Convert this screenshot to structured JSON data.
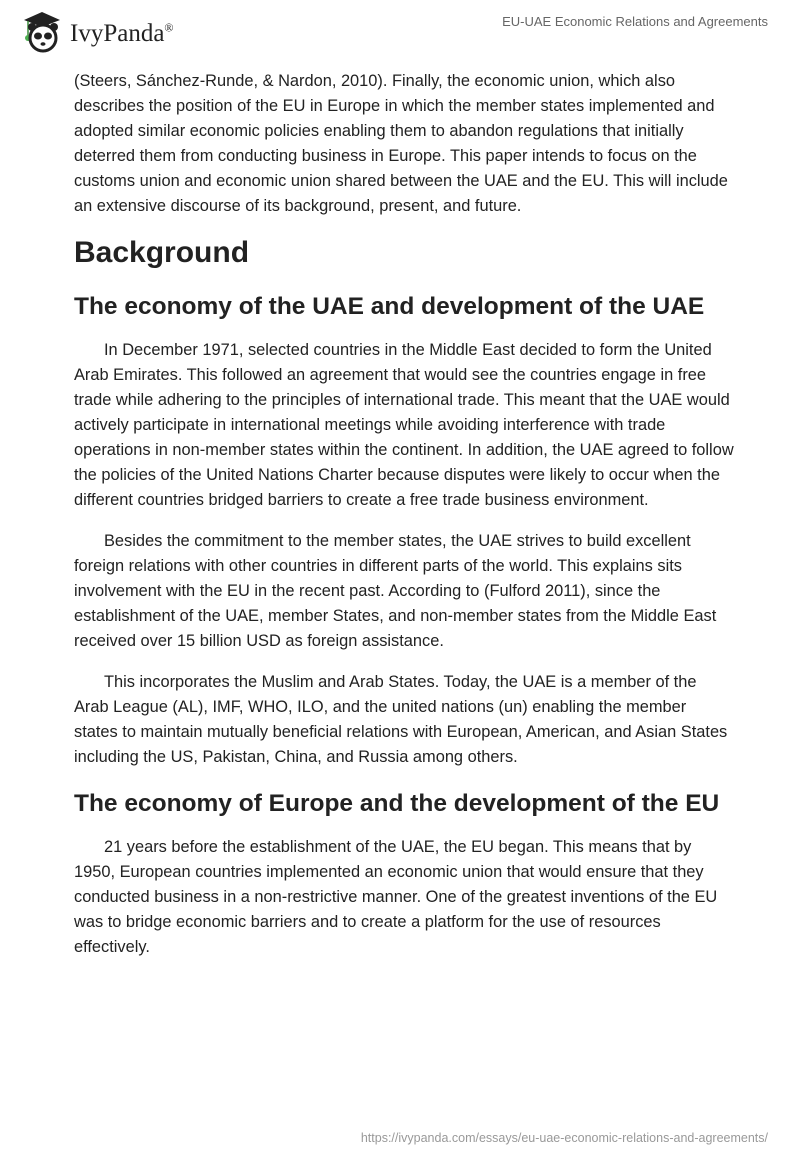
{
  "header": {
    "logo_text": "IvyPanda",
    "logo_mark": "®",
    "doc_title": "EU-UAE Economic Relations and Agreements"
  },
  "content": {
    "p0": "(Steers, Sánchez-Runde, & Nardon, 2010). Finally, the economic union, which also describes the position of the EU in Europe in which the member states implemented and adopted similar economic policies enabling them to abandon regulations that initially deterred them from conducting business in Europe. This paper intends to focus on the customs union and economic union shared between the UAE and the EU. This will include an extensive discourse of its background, present, and future.",
    "h_background": "Background",
    "h_uae": "The economy of the UAE and development of the UAE",
    "p1": "In December 1971, selected countries in the Middle East decided to form the United Arab Emirates. This followed an agreement that would see the countries engage in free trade while adhering to the principles of international trade. This meant that the UAE would actively participate in international meetings while avoiding interference with trade operations in non-member states within the continent. In addition, the UAE agreed to follow the policies of the United Nations Charter because disputes were likely to occur when the different countries bridged barriers to create a free trade business environment.",
    "p2": "Besides the commitment to the member states, the UAE strives to build excellent foreign relations with other countries in different parts of the world. This explains sits involvement with the EU in the recent past. According to (Fulford 2011), since the establishment of the UAE, member States, and non-member states from the Middle East received over 15 billion USD as foreign assistance.",
    "p3": "This incorporates the Muslim and Arab States. Today, the UAE is a member of the Arab League (AL), IMF, WHO, ILO, and the united nations (un) enabling the member states to maintain mutually beneficial relations with European, American, and Asian States including the US, Pakistan, China, and Russia among others.",
    "h_eu": "The economy of Europe and the development of the EU",
    "p4": "21 years before the establishment of the UAE, the EU began. This means that by 1950, European countries implemented an economic union that would ensure that they conducted business in a non-restrictive manner. One of the greatest inventions of the EU was to bridge economic barriers and to create a platform for the use of resources effectively."
  },
  "footer": {
    "url": "https://ivypanda.com/essays/eu-uae-economic-relations-and-agreements/"
  }
}
